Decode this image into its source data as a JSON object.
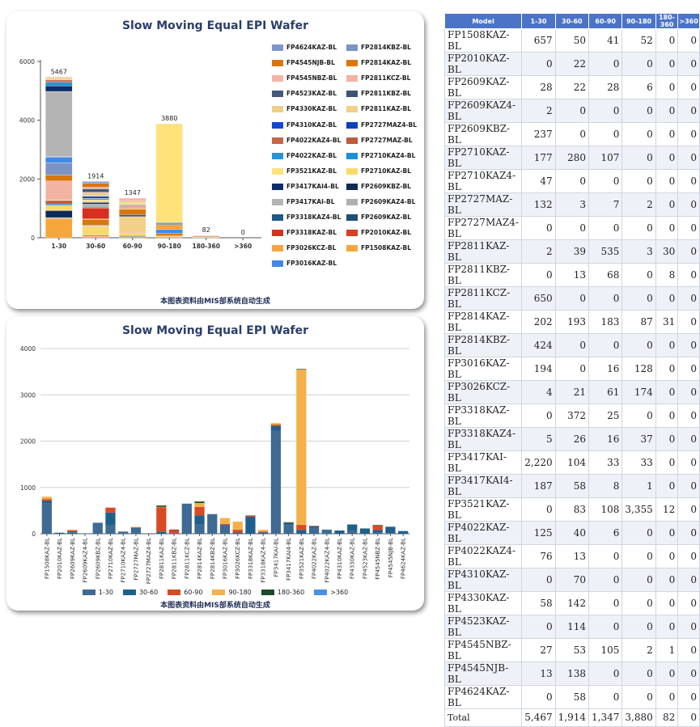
{
  "colors": {
    "models": {
      "FP1508KAZ-BL": "#f6a63a",
      "FP2010KAZ-BL": "#d9401e",
      "FP2609KAZ-BL": "#1f4f73",
      "FP2609KAZ4-BL": "#b0b0b0",
      "FP2609KBZ-BL": "#0f2a55",
      "FP2710KAZ-BL": "#fcd96e",
      "FP2710KAZ4-BL": "#1c8fd5",
      "FP2727MAZ-BL": "#c05a3c",
      "FP2727MAZ4-BL": "#0d3fbf",
      "FP2811KAZ-BL": "#f2d08a",
      "FP2811KBZ-BL": "#3c5373",
      "FP2811KCZ-BL": "#f3b3a3",
      "FP2814KAZ-BL": "#d9760e",
      "FP2814KBZ-BL": "#7b94c4",
      "FP3016KAZ-BL": "#3f8ae6",
      "FP3026KCZ-BL": "#f7a343",
      "FP3318KAZ-BL": "#d8301e",
      "FP3318KAZ4-BL": "#1e5b86",
      "FP3417KAI-BL": "#b4b4b4",
      "FP3417KAI4-BL": "#0c2d6b",
      "FP3521KAZ-BL": "#ffe27a",
      "FP4022KAZ-BL": "#2793d8",
      "FP4022KAZ4-BL": "#c86448",
      "FP4310KAZ-BL": "#1247d8",
      "FP4330KAZ-BL": "#efcf85",
      "FP4523KAZ-BL": "#44597b",
      "FP4545NBZ-BL": "#f4b5a8",
      "FP4545NJB-BL": "#d97410",
      "FP4624KAZ-BL": "#7f97c8"
    },
    "buckets": [
      "#3f6a93",
      "#1f5f8c",
      "#d84a24",
      "#f5b04a",
      "#1c4a2a",
      "#4a90e2"
    ],
    "header": "#4b74c8"
  },
  "chart1": {
    "title": "Slow Moving Equal EPI Wafer",
    "footer": "本图表资料由MIS部系统自动生成",
    "yticks": [
      "0",
      "2000",
      "4000",
      "6000"
    ],
    "ymax": 6000,
    "categories": [
      "1-30",
      "30-60",
      "60-90",
      "90-180",
      "180-360",
      ">360"
    ],
    "totals": [
      "5467",
      "1914",
      "1347",
      "3880",
      "82",
      "0"
    ],
    "legend_left": [
      "FP4624KAZ-BL",
      "FP4545NJB-BL",
      "FP4545NBZ-BL",
      "FP4523KAZ-BL",
      "FP4330KAZ-BL",
      "FP4310KAZ-BL",
      "FP4022KAZ4-BL",
      "FP4022KAZ-BL",
      "FP3521KAZ-BL",
      "FP3417KAI4-BL",
      "FP3417KAI-BL",
      "FP3318KAZ4-BL",
      "FP3318KAZ-BL",
      "FP3026KCZ-BL",
      "FP3016KAZ-BL"
    ],
    "legend_right": [
      "FP2814KBZ-BL",
      "FP2814KAZ-BL",
      "FP2811KCZ-BL",
      "FP2811KBZ-BL",
      "FP2811KAZ-BL",
      "FP2727MAZ4-BL",
      "FP2727MAZ-BL",
      "FP2710KAZ4-BL",
      "FP2710KAZ-BL",
      "FP2609KBZ-BL",
      "FP2609KAZ4-BL",
      "FP2609KAZ-BL",
      "FP2010KAZ-BL",
      "FP1508KAZ-BL"
    ]
  },
  "chart2": {
    "title": "Slow Moving Equal EPI Wafer",
    "footer": "本图表资料由MIS部系统自动生成",
    "yticks": [
      "0",
      "1000",
      "2000",
      "3000",
      "4000"
    ],
    "ymax": 4000,
    "legend": [
      "1-30",
      "30-60",
      "60-90",
      "90-180",
      "180-360",
      ">360"
    ]
  },
  "table": {
    "headers": [
      "Model",
      "1-30",
      "30-60",
      "60-90",
      "90-180",
      "180-360",
      ">360"
    ],
    "rows": [
      {
        "model": "FP1508KAZ-BL",
        "v": [
          "657",
          "50",
          "41",
          "52",
          "0",
          "0"
        ]
      },
      {
        "model": "FP2010KAZ-BL",
        "v": [
          "0",
          "22",
          "0",
          "0",
          "0",
          "0"
        ]
      },
      {
        "model": "FP2609KAZ-BL",
        "v": [
          "28",
          "22",
          "28",
          "6",
          "0",
          "0"
        ]
      },
      {
        "model": "FP2609KAZ4-BL",
        "v": [
          "2",
          "0",
          "0",
          "0",
          "0",
          "0"
        ]
      },
      {
        "model": "FP2609KBZ-BL",
        "v": [
          "237",
          "0",
          "0",
          "0",
          "0",
          "0"
        ]
      },
      {
        "model": "FP2710KAZ-BL",
        "v": [
          "177",
          "280",
          "107",
          "0",
          "0",
          "0"
        ]
      },
      {
        "model": "FP2710KAZ4-BL",
        "v": [
          "47",
          "0",
          "0",
          "0",
          "0",
          "0"
        ]
      },
      {
        "model": "FP2727MAZ-BL",
        "v": [
          "132",
          "3",
          "7",
          "2",
          "0",
          "0"
        ]
      },
      {
        "model": "FP2727MAZ4-BL",
        "v": [
          "0",
          "0",
          "0",
          "0",
          "0",
          "0"
        ]
      },
      {
        "model": "FP2811KAZ-BL",
        "v": [
          "2",
          "39",
          "535",
          "3",
          "30",
          "0"
        ]
      },
      {
        "model": "FP2811KBZ-BL",
        "v": [
          "0",
          "13",
          "68",
          "0",
          "8",
          "0"
        ]
      },
      {
        "model": "FP2811KCZ-BL",
        "v": [
          "650",
          "0",
          "0",
          "0",
          "0",
          "0"
        ]
      },
      {
        "model": "FP2814KAZ-BL",
        "v": [
          "202",
          "193",
          "183",
          "87",
          "31",
          "0"
        ]
      },
      {
        "model": "FP2814KBZ-BL",
        "v": [
          "424",
          "0",
          "0",
          "0",
          "0",
          "0"
        ]
      },
      {
        "model": "FP3016KAZ-BL",
        "v": [
          "194",
          "0",
          "16",
          "128",
          "0",
          "0"
        ]
      },
      {
        "model": "FP3026KCZ-BL",
        "v": [
          "4",
          "21",
          "61",
          "174",
          "0",
          "0"
        ]
      },
      {
        "model": "FP3318KAZ-BL",
        "v": [
          "0",
          "372",
          "25",
          "0",
          "0",
          "0"
        ]
      },
      {
        "model": "FP3318KAZ4-BL",
        "v": [
          "5",
          "26",
          "16",
          "37",
          "0",
          "0"
        ]
      },
      {
        "model": "FP3417KAI-BL",
        "v": [
          "2,220",
          "104",
          "33",
          "33",
          "0",
          "0"
        ]
      },
      {
        "model": "FP3417KAI4-BL",
        "v": [
          "187",
          "58",
          "8",
          "1",
          "0",
          "0"
        ]
      },
      {
        "model": "FP3521KAZ-BL",
        "v": [
          "0",
          "83",
          "108",
          "3,355",
          "12",
          "0"
        ]
      },
      {
        "model": "FP4022KAZ-BL",
        "v": [
          "125",
          "40",
          "6",
          "0",
          "0",
          "0"
        ]
      },
      {
        "model": "FP4022KAZ4-BL",
        "v": [
          "76",
          "13",
          "0",
          "0",
          "0",
          "0"
        ]
      },
      {
        "model": "FP4310KAZ-BL",
        "v": [
          "0",
          "70",
          "0",
          "0",
          "0",
          "0"
        ]
      },
      {
        "model": "FP4330KAZ-BL",
        "v": [
          "58",
          "142",
          "0",
          "0",
          "0",
          "0"
        ]
      },
      {
        "model": "FP4523KAZ-BL",
        "v": [
          "0",
          "114",
          "0",
          "0",
          "0",
          "0"
        ]
      },
      {
        "model": "FP4545NBZ-BL",
        "v": [
          "27",
          "53",
          "105",
          "2",
          "1",
          "0"
        ]
      },
      {
        "model": "FP4545NJB-BL",
        "v": [
          "13",
          "138",
          "0",
          "0",
          "0",
          "0"
        ]
      },
      {
        "model": "FP4624KAZ-BL",
        "v": [
          "0",
          "58",
          "0",
          "0",
          "0",
          "0"
        ]
      }
    ],
    "total": {
      "label": "Total",
      "v": [
        "5,467",
        "1,914",
        "1,347",
        "3,880",
        "82",
        "0"
      ]
    }
  },
  "chart_data": [
    {
      "type": "bar",
      "stacked": true,
      "title": "Slow Moving Equal EPI Wafer",
      "categories": [
        "1-30",
        "30-60",
        "60-90",
        "90-180",
        "180-360",
        ">360"
      ],
      "ylim": [
        0,
        6000
      ],
      "series_source": "table.rows (one series per model)",
      "totals": [
        5467,
        1914,
        1347,
        3880,
        82,
        0
      ],
      "legend": "right"
    },
    {
      "type": "bar",
      "stacked": true,
      "title": "Slow Moving Equal EPI Wafer",
      "categories": [
        "FP1508KAZ-BL",
        "FP2010KAZ-BL",
        "FP2609KAZ-BL",
        "FP2609KAZ4-BL",
        "FP2609KBZ-BL",
        "FP2710KAZ-BL",
        "FP2710KAZ4-BL",
        "FP2727MAZ-BL",
        "FP2727MAZ4-BL",
        "FP2811KAZ-BL",
        "FP2811KBZ-BL",
        "FP2811KCZ-BL",
        "FP2814KAZ-BL",
        "FP2814KBZ-BL",
        "FP3016KAZ-BL",
        "FP3026KCZ-BL",
        "FP3318KAZ-BL",
        "FP3318KAZ4-BL",
        "FP3417KAI-BL",
        "FP3417KAI4-BL",
        "FP3521KAZ-BL",
        "FP4022KAZ-BL",
        "FP4022KAZ4-BL",
        "FP4310KAZ-BL",
        "FP4330KAZ-BL",
        "FP4523KAZ-BL",
        "FP4545NBZ-BL",
        "FP4545NJB-BL",
        "FP4624KAZ-BL"
      ],
      "series": [
        {
          "name": "1-30",
          "values": [
            657,
            0,
            28,
            2,
            237,
            177,
            47,
            132,
            0,
            2,
            0,
            650,
            202,
            424,
            194,
            4,
            0,
            5,
            2220,
            187,
            0,
            125,
            76,
            0,
            58,
            0,
            27,
            13,
            0
          ]
        },
        {
          "name": "30-60",
          "values": [
            50,
            22,
            22,
            0,
            0,
            280,
            0,
            3,
            0,
            39,
            13,
            0,
            193,
            0,
            0,
            21,
            372,
            26,
            104,
            58,
            83,
            40,
            13,
            70,
            142,
            114,
            53,
            138,
            58
          ]
        },
        {
          "name": "60-90",
          "values": [
            41,
            0,
            28,
            0,
            0,
            107,
            0,
            7,
            0,
            535,
            68,
            0,
            183,
            0,
            16,
            61,
            25,
            16,
            33,
            8,
            108,
            6,
            0,
            0,
            0,
            0,
            105,
            0,
            0
          ]
        },
        {
          "name": "90-180",
          "values": [
            52,
            0,
            6,
            0,
            0,
            0,
            0,
            2,
            0,
            3,
            0,
            0,
            87,
            0,
            128,
            174,
            0,
            37,
            33,
            1,
            3355,
            0,
            0,
            0,
            0,
            0,
            2,
            0,
            0
          ]
        },
        {
          "name": "180-360",
          "values": [
            0,
            0,
            0,
            0,
            0,
            0,
            0,
            0,
            0,
            30,
            8,
            0,
            31,
            0,
            0,
            0,
            0,
            0,
            0,
            0,
            12,
            0,
            0,
            0,
            0,
            0,
            1,
            0,
            0
          ]
        },
        {
          "name": ">360",
          "values": [
            0,
            0,
            0,
            0,
            0,
            0,
            0,
            0,
            0,
            0,
            0,
            0,
            0,
            0,
            0,
            0,
            0,
            0,
            0,
            0,
            0,
            0,
            0,
            0,
            0,
            0,
            0,
            0,
            0
          ]
        }
      ],
      "ylim": [
        0,
        4000
      ],
      "legend": "bottom"
    }
  ]
}
